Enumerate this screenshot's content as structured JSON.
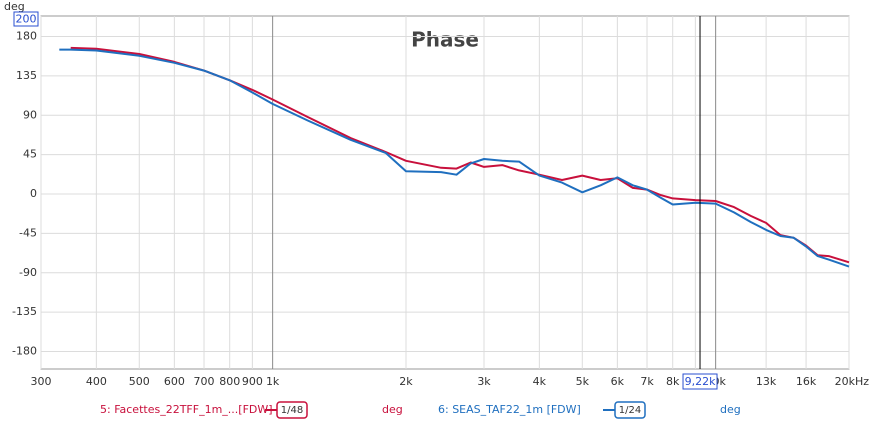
{
  "chart_data": {
    "type": "line",
    "title": "Phase",
    "y_unit": "deg",
    "xlim": [
      300,
      20000
    ],
    "ylim": [
      -200,
      200
    ],
    "log_x": true,
    "grid": true,
    "xticks": [
      300,
      400,
      500,
      600,
      700,
      800,
      900,
      {
        "value": 1000,
        "label": "1k"
      },
      {
        "value": 2000,
        "label": "2k"
      },
      {
        "value": 3000,
        "label": "3k"
      },
      {
        "value": 4000,
        "label": "4k"
      },
      {
        "value": 5000,
        "label": "5k"
      },
      {
        "value": 6000,
        "label": "6k"
      },
      {
        "value": 7000,
        "label": "7k"
      },
      {
        "value": 8000,
        "label": "8k"
      },
      {
        "value": 9000,
        "label": "9k"
      },
      {
        "value": 10000,
        "label": "10k"
      },
      {
        "value": 13000,
        "label": "13k"
      },
      {
        "value": 16000,
        "label": "16k"
      },
      {
        "value": 20000,
        "label": "20kHz"
      }
    ],
    "yticks": [
      180,
      135,
      90,
      45,
      0,
      -45,
      -90,
      -135,
      -180
    ],
    "cursor": {
      "value": 9220,
      "label": "9,22k"
    },
    "x": [
      330,
      350,
      400,
      500,
      600,
      700,
      800,
      900,
      1000,
      1200,
      1500,
      1800,
      2000,
      2400,
      2600,
      2800,
      3000,
      3300,
      3600,
      4000,
      4500,
      5000,
      5500,
      6000,
      6500,
      7000,
      7500,
      8000,
      9000,
      10000,
      11000,
      12000,
      13000,
      14000,
      15000,
      16000,
      17000,
      18000,
      20000
    ],
    "series": [
      {
        "name": "5: Facettes_22TFF_1m_...[FDW]",
        "color": "#c8103c",
        "smoothing": "1/48",
        "unit": "deg",
        "values": [
          null,
          167,
          166,
          160,
          151,
          141,
          130,
          119,
          108,
          88,
          64,
          48,
          38,
          30,
          29,
          36,
          31,
          33,
          27,
          22,
          16,
          21,
          16,
          18,
          7,
          5,
          -1,
          -5,
          -7,
          -8,
          -15,
          -25,
          -33,
          -47,
          -50,
          -59,
          -70,
          -71,
          -78
        ]
      },
      {
        "name": "6: SEAS_TAF22_1m [FDW]",
        "color": "#1f6fbf",
        "smoothing": "1/24",
        "unit": "deg",
        "values": [
          165,
          165,
          164,
          158,
          150,
          141,
          130,
          116,
          103,
          84,
          62,
          47,
          26,
          25,
          22,
          35,
          40,
          38,
          37,
          21,
          13,
          2,
          10,
          19,
          10,
          5,
          -4,
          -12,
          -10,
          -11,
          -21,
          -32,
          -41,
          -48,
          -50,
          -60,
          -71,
          -75,
          -83
        ]
      }
    ]
  }
}
